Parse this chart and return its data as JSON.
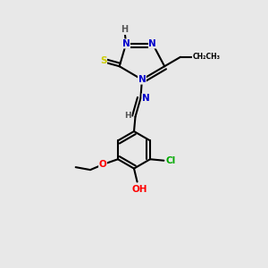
{
  "bg_color": "#e8e8e8",
  "atom_colors": {
    "N": "#0000cc",
    "O": "#ff0000",
    "S": "#cccc00",
    "Cl": "#00aa00",
    "C": "#000000",
    "H": "#555555"
  },
  "bond_color": "#000000",
  "bond_width": 1.5
}
